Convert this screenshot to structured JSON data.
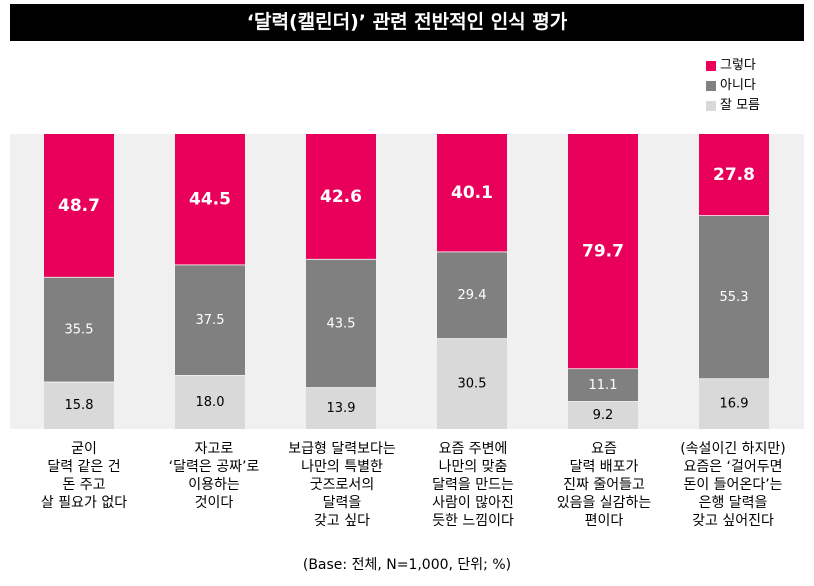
{
  "chart_data": {
    "type": "bar",
    "stacked": true,
    "title": "‘달력(캘린더)’ 관련 전반적인 인식 평가",
    "categories": [
      "굳이\n달력 같은 건\n돈 주고\n살 필요가 없다",
      "자고로\n‘달력은 공짜’로\n이용하는\n것이다",
      "보급형 달력보다는\n나만의 특별한\n굿즈로서의\n달력을\n갖고 싶다",
      "요즘 주변에\n나만의 맞춤\n달력을 만드는\n사람이 많아진\n듯한 느낌이다",
      "요즘\n달력 배포가\n진짜 줄어들고\n있음을 실감하는\n편이다",
      "(속설이긴 하지만)\n요즘은 ‘걸어두면\n돈이 들어온다’는\n은행 달력을\n갖고 싶어진다"
    ],
    "series": [
      {
        "name": "그렇다",
        "color": "#e8005a",
        "values": [
          48.7,
          44.5,
          42.6,
          40.1,
          79.7,
          27.8
        ],
        "labels": [
          "48.7",
          "44.5",
          "42.6",
          "40.1",
          "79.7",
          "27.8"
        ]
      },
      {
        "name": "아니다",
        "color": "#808080",
        "values": [
          35.5,
          37.5,
          43.5,
          29.4,
          11.1,
          55.3
        ],
        "labels": [
          "35.5",
          "37.5",
          "43.5",
          "29.4",
          "11.1",
          "55.3"
        ]
      },
      {
        "name": "잘 모름",
        "color": "#d9d9d9",
        "values": [
          15.8,
          18.0,
          13.9,
          30.5,
          9.2,
          16.9
        ],
        "labels": [
          "15.8",
          "18.0",
          "13.9",
          "30.5",
          "9.2",
          "16.9"
        ]
      }
    ],
    "ylim": [
      0,
      100
    ],
    "legend_position": "top-right",
    "footnote": "(Base: 전체, N=1,000, 단위; %)"
  }
}
